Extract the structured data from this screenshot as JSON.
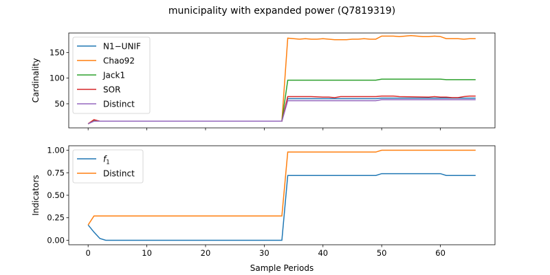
{
  "figure": {
    "title": "municipality with expanded power (Q7819319)",
    "xlabel": "Sample Periods"
  },
  "colors": {
    "blue": "#1f77b4",
    "orange": "#ff7f0e",
    "green": "#2ca02c",
    "red": "#d62728",
    "purple": "#9467bd"
  },
  "chart_data": [
    {
      "type": "line",
      "ylabel": "Cardinality",
      "xlim": [
        -3.3,
        69.3
      ],
      "ylim": [
        3,
        188
      ],
      "xticks": [
        0,
        10,
        20,
        30,
        40,
        50,
        60
      ],
      "xtick_labels_visible": false,
      "yticks": [
        50,
        100,
        150
      ],
      "ytick_labels": [
        "50",
        "100",
        "150"
      ],
      "legend_placement": "upper-left",
      "series": [
        {
          "name": "N1−UNIF",
          "color": "#1f77b4",
          "x": [
            0,
            1,
            2,
            33,
            34,
            49,
            50,
            66
          ],
          "y": [
            11,
            17,
            16,
            16,
            60,
            60,
            61,
            61
          ]
        },
        {
          "name": "Chao92",
          "color": "#ff7f0e",
          "x": [
            0,
            1,
            2,
            33,
            34,
            35,
            36,
            37,
            38,
            39,
            40,
            41,
            42,
            43,
            44,
            45,
            46,
            47,
            48,
            49,
            50,
            51,
            52,
            53,
            54,
            55,
            56,
            57,
            58,
            59,
            60,
            61,
            62,
            63,
            64,
            65,
            66
          ],
          "y": [
            11,
            17,
            16,
            16,
            178,
            177,
            176,
            177,
            176,
            176,
            177,
            176,
            175,
            175,
            175,
            176,
            176,
            177,
            176,
            176,
            182,
            182,
            182,
            181,
            182,
            183,
            182,
            181,
            181,
            182,
            181,
            177,
            177,
            177,
            176,
            177,
            177
          ]
        },
        {
          "name": "Jack1",
          "color": "#2ca02c",
          "x": [
            0,
            1,
            2,
            33,
            34,
            49,
            50,
            60,
            61,
            66
          ],
          "y": [
            11,
            17,
            16,
            16,
            96,
            96,
            98,
            98,
            97,
            97
          ]
        },
        {
          "name": "SOR",
          "color": "#d62728",
          "x": [
            0,
            1,
            2,
            33,
            34,
            38,
            40,
            41,
            42,
            43,
            48,
            49,
            50,
            52,
            53,
            58,
            59,
            60,
            61,
            62,
            63,
            64,
            65,
            66
          ],
          "y": [
            11,
            19,
            16,
            16,
            64,
            64,
            63,
            63,
            62,
            64,
            64,
            64,
            65,
            65,
            64,
            63,
            64,
            63,
            63,
            62,
            62,
            64,
            65,
            65
          ]
        },
        {
          "name": "Distinct",
          "color": "#9467bd",
          "x": [
            0,
            1,
            2,
            33,
            34,
            49,
            50,
            66
          ],
          "y": [
            11,
            16,
            16,
            16,
            56,
            56,
            58,
            58
          ]
        }
      ]
    },
    {
      "type": "line",
      "ylabel": "Indicators",
      "xlabel": "Sample Periods",
      "xlim": [
        -3.3,
        69.3
      ],
      "ylim": [
        -0.05,
        1.05
      ],
      "xticks": [
        0,
        10,
        20,
        30,
        40,
        50,
        60
      ],
      "xtick_labels": [
        "0",
        "10",
        "20",
        "30",
        "40",
        "50",
        "60"
      ],
      "yticks": [
        0.0,
        0.25,
        0.5,
        0.75,
        1.0
      ],
      "ytick_labels": [
        "0.00",
        "0.25",
        "0.50",
        "0.75",
        "1.00"
      ],
      "legend_placement": "upper-left",
      "series": [
        {
          "name": "f",
          "name_subscript": "1",
          "color": "#1f77b4",
          "x": [
            0,
            1,
            2,
            3,
            33,
            34,
            49,
            50,
            60,
            61,
            66
          ],
          "y": [
            0.17,
            0.09,
            0.02,
            0.0,
            0.0,
            0.72,
            0.72,
            0.74,
            0.74,
            0.72,
            0.72
          ]
        },
        {
          "name": "Distinct",
          "color": "#ff7f0e",
          "x": [
            0,
            1,
            33,
            34,
            49,
            50,
            66
          ],
          "y": [
            0.17,
            0.27,
            0.27,
            0.98,
            0.98,
            1.0,
            1.0
          ]
        }
      ]
    }
  ]
}
